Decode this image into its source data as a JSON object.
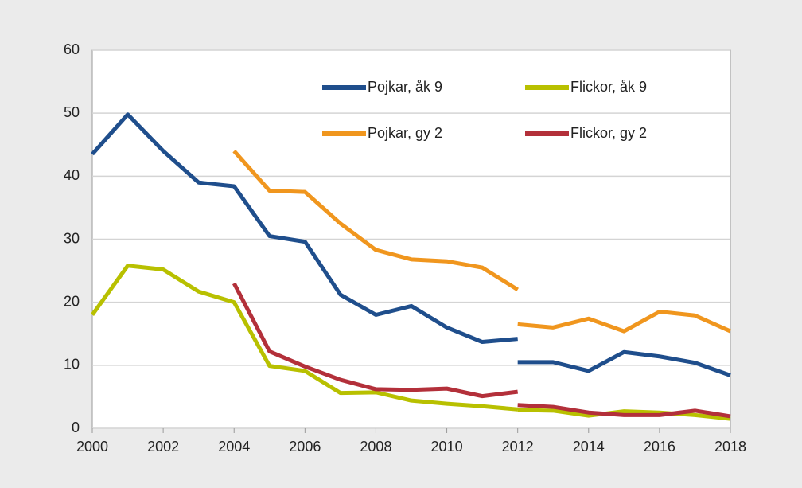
{
  "chart_data": {
    "type": "line",
    "x": [
      2000,
      2001,
      2002,
      2003,
      2004,
      2005,
      2006,
      2007,
      2008,
      2009,
      2010,
      2011,
      2012,
      2012,
      2012,
      2013,
      2014,
      2015,
      2016,
      2017,
      2018
    ],
    "series": [
      {
        "name": "Pojkar, åk 9",
        "color": "#1f4e8c",
        "values": [
          43.5,
          49.8,
          44,
          39,
          38.4,
          30.5,
          29.6,
          21.2,
          18,
          19.4,
          16,
          13.7,
          14.2,
          null,
          10.5,
          10.5,
          9.1,
          12.1,
          11.4,
          10.4,
          8.4
        ]
      },
      {
        "name": "Flickor, åk 9",
        "color": "#b8c000",
        "values": [
          18,
          25.8,
          25.2,
          21.7,
          20,
          9.9,
          9.1,
          5.6,
          5.7,
          4.4,
          3.9,
          3.5,
          3.0,
          null,
          2.9,
          2.8,
          2.0,
          2.7,
          2.5,
          2.1,
          1.5
        ]
      },
      {
        "name": "Pojkar, gy 2",
        "color": "#f0961e",
        "values": [
          null,
          null,
          null,
          null,
          44,
          37.7,
          37.5,
          32.5,
          28.3,
          26.8,
          26.5,
          25.5,
          22,
          null,
          16.5,
          16,
          17.4,
          15.4,
          18.5,
          17.9,
          15.4
        ]
      },
      {
        "name": "Flickor, gy 2",
        "color": "#b3303a",
        "values": [
          null,
          null,
          null,
          null,
          23,
          12.2,
          9.8,
          7.7,
          6.2,
          6.1,
          6.3,
          5.1,
          5.8,
          null,
          3.7,
          3.4,
          2.5,
          2.1,
          2.1,
          2.8,
          1.9
        ]
      }
    ],
    "xlim": [
      2000,
      2018
    ],
    "xticks": [
      2000,
      2002,
      2004,
      2006,
      2008,
      2010,
      2012,
      2014,
      2016,
      2018
    ],
    "ylim": [
      0,
      60
    ],
    "yticks": [
      0,
      10,
      20,
      30,
      40,
      50,
      60
    ],
    "grid": true,
    "legend": "top-right"
  }
}
